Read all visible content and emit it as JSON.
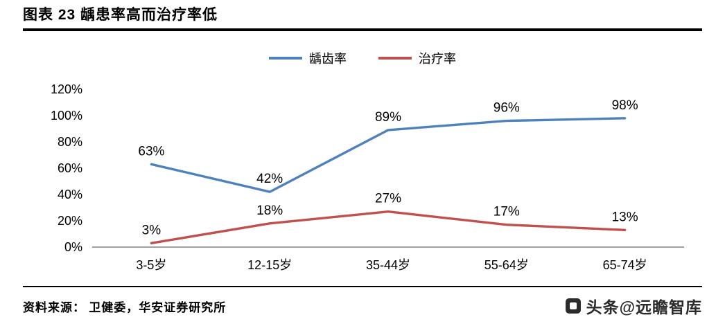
{
  "header": {
    "title": "图表 23 龋患率高而治疗率低"
  },
  "chart_data": {
    "type": "line",
    "title": "龋患率高而治疗率低",
    "categories": [
      "3-5岁",
      "12-15岁",
      "35-44岁",
      "55-64岁",
      "65-74岁"
    ],
    "series": [
      {
        "name": "龋齿率",
        "color": "#4F81BD",
        "values": [
          63,
          42,
          89,
          96,
          98
        ],
        "labels": [
          "63%",
          "42%",
          "89%",
          "96%",
          "98%"
        ]
      },
      {
        "name": "治疗率",
        "color": "#C0504D",
        "values": [
          3,
          18,
          27,
          17,
          13
        ],
        "labels": [
          "3%",
          "18%",
          "27%",
          "17%",
          "13%"
        ]
      }
    ],
    "xlabel": "",
    "ylabel": "",
    "ylim": [
      0,
      120
    ],
    "ytick_step": 20,
    "ytick_labels": [
      "0%",
      "20%",
      "40%",
      "60%",
      "80%",
      "100%",
      "120%"
    ],
    "grid": false,
    "legend_position": "top",
    "axis_color": "#808080"
  },
  "footer": {
    "source_label": "资料来源：",
    "source_text": "卫健委，华安证券研究所",
    "watermark": "头条@远瞻智库"
  }
}
